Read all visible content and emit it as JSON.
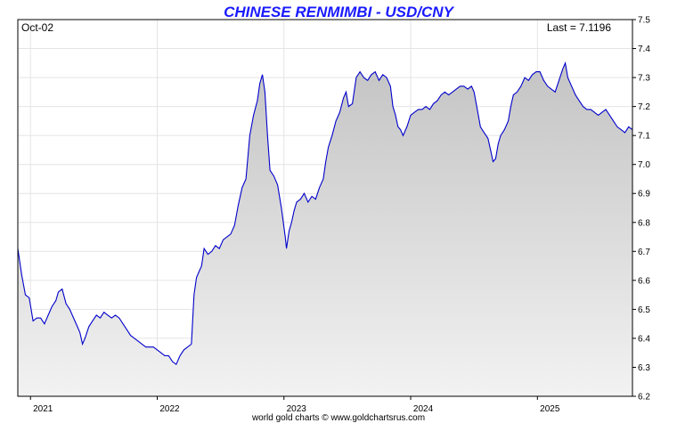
{
  "chart_data": {
    "type": "area",
    "title": "CHINESE RENMIMBI - USD/CNY",
    "date_label": "Oct-02",
    "last_label": "Last = 7.1196",
    "footer": "world gold charts © www.goldchartsrus.com",
    "xlabel": "",
    "ylabel": "",
    "x_ticks": [
      "2021",
      "2022",
      "2023",
      "2024",
      "2025"
    ],
    "y_ticks": [
      "6.2",
      "6.3",
      "6.4",
      "6.5",
      "6.6",
      "6.7",
      "6.8",
      "6.9",
      "7.0",
      "7.1",
      "7.2",
      "7.3",
      "7.4",
      "7.5"
    ],
    "ylim": [
      6.2,
      7.5
    ],
    "xlim": [
      2020.9,
      2025.75
    ],
    "grid": true,
    "line_color": "#0000cc",
    "series": [
      {
        "values": [
          [
            2020.9,
            6.71
          ],
          [
            2020.93,
            6.62
          ],
          [
            2020.96,
            6.55
          ],
          [
            2020.99,
            6.54
          ],
          [
            2021.02,
            6.46
          ],
          [
            2021.05,
            6.47
          ],
          [
            2021.08,
            6.47
          ],
          [
            2021.11,
            6.45
          ],
          [
            2021.14,
            6.48
          ],
          [
            2021.17,
            6.51
          ],
          [
            2021.2,
            6.53
          ],
          [
            2021.22,
            6.56
          ],
          [
            2021.25,
            6.57
          ],
          [
            2021.28,
            6.52
          ],
          [
            2021.31,
            6.5
          ],
          [
            2021.34,
            6.47
          ],
          [
            2021.37,
            6.44
          ],
          [
            2021.39,
            6.42
          ],
          [
            2021.41,
            6.38
          ],
          [
            2021.43,
            6.4
          ],
          [
            2021.46,
            6.44
          ],
          [
            2021.49,
            6.46
          ],
          [
            2021.52,
            6.48
          ],
          [
            2021.55,
            6.47
          ],
          [
            2021.58,
            6.49
          ],
          [
            2021.61,
            6.48
          ],
          [
            2021.64,
            6.47
          ],
          [
            2021.67,
            6.48
          ],
          [
            2021.7,
            6.47
          ],
          [
            2021.73,
            6.45
          ],
          [
            2021.76,
            6.43
          ],
          [
            2021.79,
            6.41
          ],
          [
            2021.82,
            6.4
          ],
          [
            2021.85,
            6.39
          ],
          [
            2021.88,
            6.38
          ],
          [
            2021.91,
            6.37
          ],
          [
            2021.94,
            6.37
          ],
          [
            2021.97,
            6.37
          ],
          [
            2022.0,
            6.36
          ],
          [
            2022.03,
            6.35
          ],
          [
            2022.06,
            6.34
          ],
          [
            2022.09,
            6.34
          ],
          [
            2022.12,
            6.32
          ],
          [
            2022.15,
            6.31
          ],
          [
            2022.18,
            6.34
          ],
          [
            2022.21,
            6.36
          ],
          [
            2022.24,
            6.37
          ],
          [
            2022.27,
            6.38
          ],
          [
            2022.29,
            6.55
          ],
          [
            2022.31,
            6.61
          ],
          [
            2022.33,
            6.63
          ],
          [
            2022.35,
            6.65
          ],
          [
            2022.37,
            6.71
          ],
          [
            2022.4,
            6.69
          ],
          [
            2022.43,
            6.7
          ],
          [
            2022.46,
            6.72
          ],
          [
            2022.49,
            6.71
          ],
          [
            2022.52,
            6.74
          ],
          [
            2022.55,
            6.75
          ],
          [
            2022.58,
            6.76
          ],
          [
            2022.61,
            6.79
          ],
          [
            2022.64,
            6.86
          ],
          [
            2022.67,
            6.92
          ],
          [
            2022.7,
            6.95
          ],
          [
            2022.73,
            7.1
          ],
          [
            2022.76,
            7.17
          ],
          [
            2022.79,
            7.22
          ],
          [
            2022.81,
            7.28
          ],
          [
            2022.83,
            7.31
          ],
          [
            2022.85,
            7.25
          ],
          [
            2022.87,
            7.1
          ],
          [
            2022.89,
            6.98
          ],
          [
            2022.92,
            6.96
          ],
          [
            2022.95,
            6.93
          ],
          [
            2022.98,
            6.85
          ],
          [
            2023.01,
            6.75
          ],
          [
            2023.02,
            6.71
          ],
          [
            2023.04,
            6.77
          ],
          [
            2023.06,
            6.8
          ],
          [
            2023.08,
            6.84
          ],
          [
            2023.1,
            6.87
          ],
          [
            2023.13,
            6.88
          ],
          [
            2023.16,
            6.9
          ],
          [
            2023.19,
            6.87
          ],
          [
            2023.22,
            6.89
          ],
          [
            2023.25,
            6.88
          ],
          [
            2023.28,
            6.92
          ],
          [
            2023.31,
            6.95
          ],
          [
            2023.33,
            7.01
          ],
          [
            2023.35,
            7.06
          ],
          [
            2023.38,
            7.1
          ],
          [
            2023.41,
            7.15
          ],
          [
            2023.44,
            7.18
          ],
          [
            2023.47,
            7.23
          ],
          [
            2023.49,
            7.25
          ],
          [
            2023.51,
            7.2
          ],
          [
            2023.54,
            7.21
          ],
          [
            2023.57,
            7.3
          ],
          [
            2023.6,
            7.32
          ],
          [
            2023.63,
            7.3
          ],
          [
            2023.66,
            7.29
          ],
          [
            2023.69,
            7.31
          ],
          [
            2023.72,
            7.32
          ],
          [
            2023.75,
            7.29
          ],
          [
            2023.78,
            7.31
          ],
          [
            2023.81,
            7.3
          ],
          [
            2023.84,
            7.27
          ],
          [
            2023.86,
            7.2
          ],
          [
            2023.88,
            7.17
          ],
          [
            2023.9,
            7.13
          ],
          [
            2023.92,
            7.12
          ],
          [
            2023.94,
            7.1
          ],
          [
            2023.97,
            7.13
          ],
          [
            2024.0,
            7.17
          ],
          [
            2024.03,
            7.18
          ],
          [
            2024.06,
            7.19
          ],
          [
            2024.09,
            7.19
          ],
          [
            2024.12,
            7.2
          ],
          [
            2024.15,
            7.19
          ],
          [
            2024.18,
            7.21
          ],
          [
            2024.21,
            7.22
          ],
          [
            2024.24,
            7.24
          ],
          [
            2024.27,
            7.25
          ],
          [
            2024.3,
            7.24
          ],
          [
            2024.33,
            7.25
          ],
          [
            2024.36,
            7.26
          ],
          [
            2024.39,
            7.27
          ],
          [
            2024.42,
            7.27
          ],
          [
            2024.45,
            7.26
          ],
          [
            2024.48,
            7.27
          ],
          [
            2024.5,
            7.25
          ],
          [
            2024.53,
            7.18
          ],
          [
            2024.55,
            7.13
          ],
          [
            2024.58,
            7.11
          ],
          [
            2024.61,
            7.09
          ],
          [
            2024.63,
            7.05
          ],
          [
            2024.65,
            7.01
          ],
          [
            2024.67,
            7.02
          ],
          [
            2024.69,
            7.07
          ],
          [
            2024.71,
            7.1
          ],
          [
            2024.74,
            7.12
          ],
          [
            2024.77,
            7.15
          ],
          [
            2024.79,
            7.2
          ],
          [
            2024.81,
            7.24
          ],
          [
            2024.84,
            7.25
          ],
          [
            2024.87,
            7.27
          ],
          [
            2024.9,
            7.3
          ],
          [
            2024.93,
            7.29
          ],
          [
            2024.96,
            7.31
          ],
          [
            2024.99,
            7.32
          ],
          [
            2025.02,
            7.32
          ],
          [
            2025.05,
            7.29
          ],
          [
            2025.08,
            7.27
          ],
          [
            2025.11,
            7.26
          ],
          [
            2025.14,
            7.25
          ],
          [
            2025.17,
            7.29
          ],
          [
            2025.2,
            7.33
          ],
          [
            2025.22,
            7.35
          ],
          [
            2025.24,
            7.3
          ],
          [
            2025.27,
            7.27
          ],
          [
            2025.3,
            7.24
          ],
          [
            2025.33,
            7.22
          ],
          [
            2025.36,
            7.2
          ],
          [
            2025.39,
            7.19
          ],
          [
            2025.42,
            7.19
          ],
          [
            2025.45,
            7.18
          ],
          [
            2025.48,
            7.17
          ],
          [
            2025.51,
            7.18
          ],
          [
            2025.54,
            7.19
          ],
          [
            2025.57,
            7.17
          ],
          [
            2025.6,
            7.15
          ],
          [
            2025.63,
            7.13
          ],
          [
            2025.66,
            7.12
          ],
          [
            2025.69,
            7.11
          ],
          [
            2025.72,
            7.13
          ],
          [
            2025.75,
            7.12
          ]
        ]
      }
    ]
  }
}
